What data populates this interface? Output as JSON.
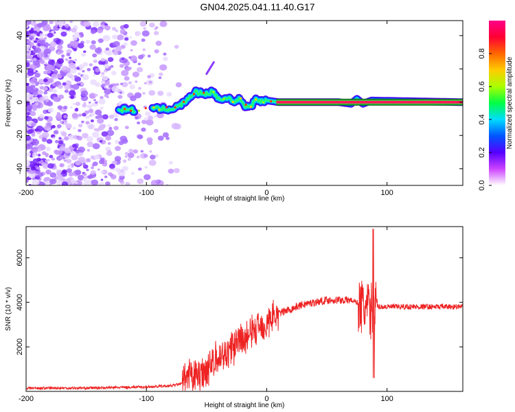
{
  "title": "GN04.2025.041.11.40.G17",
  "chart_data": [
    {
      "type": "heatmap",
      "xlabel": "Height of straight line (km)",
      "ylabel": "Frequency (Hz)",
      "xlim": [
        -200,
        163
      ],
      "ylim": [
        -50,
        49
      ],
      "xticks": [
        "-200",
        "-100",
        "0",
        "100"
      ],
      "yticks": [
        "-40",
        "-20",
        "0",
        "20",
        "40"
      ],
      "colorbar": {
        "label": "Normalized spectral amplitude",
        "range": [
          0,
          1
        ],
        "ticks": [
          "0.0",
          "0.2",
          "0.4",
          "0.6",
          "0.8"
        ],
        "colormap": [
          "#ffffff",
          "#cc44ff",
          "#5500ff",
          "#0055ff",
          "#00ddff",
          "#00ff44",
          "#aaff00",
          "#ffcc00",
          "#ff6600",
          "#ff0033",
          "#ff0088"
        ]
      },
      "ridge": {
        "x": [
          -123,
          -115,
          -110,
          -95,
          -85,
          -78,
          -72,
          -65,
          -60,
          -52,
          -45,
          -38,
          -32,
          -26,
          -22,
          -18,
          -14,
          -8,
          -3,
          0,
          10,
          30,
          60,
          70,
          75,
          80,
          87,
          163
        ],
        "y": [
          -5,
          -4,
          -5,
          -4,
          -4,
          -4,
          -2,
          2,
          6,
          5,
          6,
          1,
          3,
          0,
          2,
          -2,
          -3,
          2,
          0,
          1,
          0,
          0,
          0,
          -1,
          2,
          -1,
          1,
          0
        ]
      }
    },
    {
      "type": "line",
      "xlabel": "Height of straight line (km)",
      "ylabel": "SNR (10 * v/v)",
      "xlim": [
        -200,
        163
      ],
      "ylim": [
        0,
        7400
      ],
      "xticks": [
        "-200",
        "-100",
        "0",
        "100"
      ],
      "yticks": [
        "2000",
        "4000",
        "6000"
      ],
      "color": "#ee2222",
      "series": [
        {
          "x": [
            -200,
            -150,
            -100,
            -80,
            -70,
            -65,
            -60,
            -55,
            -50,
            -45,
            -40,
            -35,
            -30,
            -25,
            -20,
            -15,
            -10,
            -5,
            0,
            3,
            6,
            10,
            20,
            30,
            40,
            50,
            60,
            70,
            75,
            78,
            80,
            82,
            85,
            88,
            90,
            95,
            100,
            120,
            140,
            163
          ],
          "y": [
            150,
            150,
            200,
            250,
            350,
            600,
            700,
            800,
            1000,
            1300,
            1500,
            1700,
            1900,
            2100,
            2300,
            2500,
            2800,
            3000,
            3000,
            3200,
            3400,
            3500,
            3700,
            3900,
            4000,
            4100,
            4100,
            4100,
            4000,
            3800,
            3800,
            3700,
            3600,
            3600,
            3800,
            3800,
            3800,
            3800,
            3800,
            3800
          ]
        }
      ]
    }
  ]
}
